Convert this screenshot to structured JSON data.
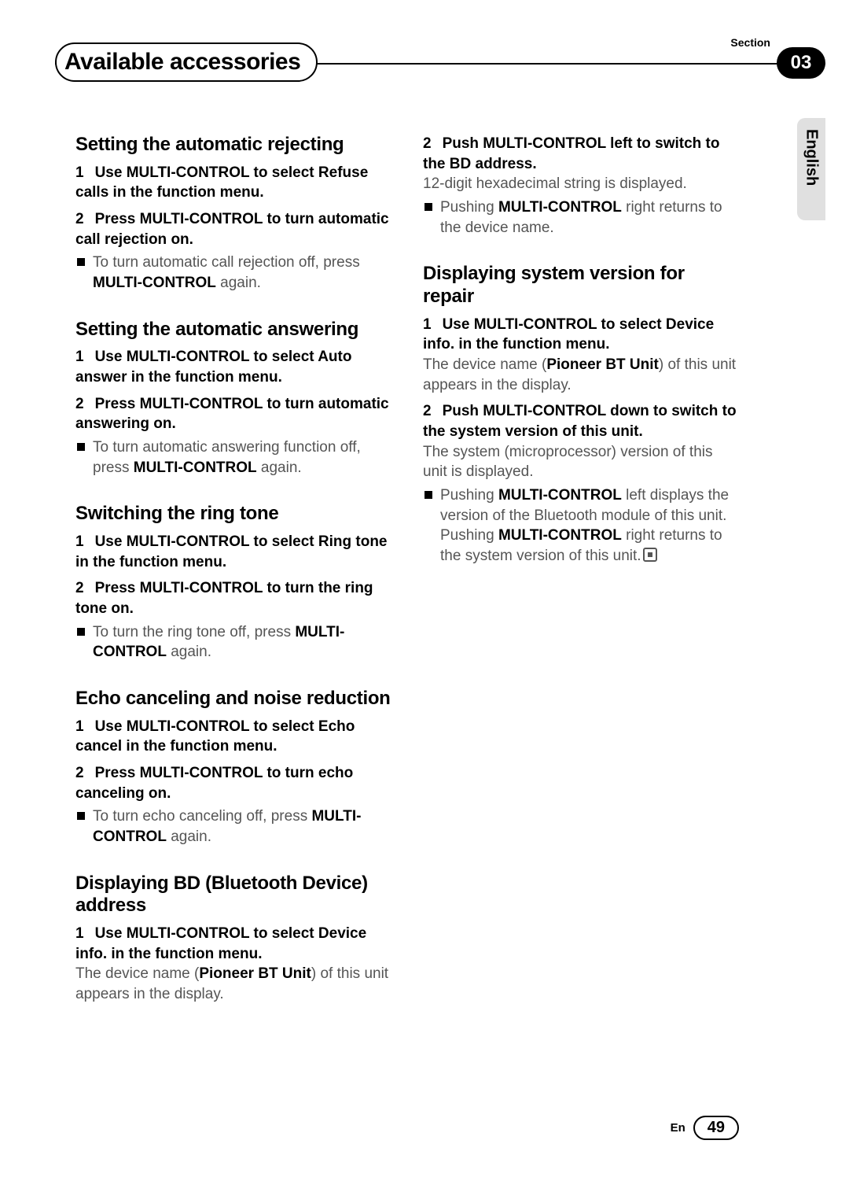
{
  "header": {
    "chapter_title": "Available accessories",
    "section_label": "Section",
    "section_number": "03",
    "language_tab": "English"
  },
  "left_column": {
    "sec1": {
      "heading": "Setting the automatic rejecting",
      "step1_num": "1",
      "step1": "Use MULTI-CONTROL to select Refuse calls in the function menu.",
      "step2_num": "2",
      "step2": "Press MULTI-CONTROL to turn automatic call rejection on.",
      "note1a": "To turn automatic call rejection off, press ",
      "note1b": "MULTI-CONTROL",
      "note1c": " again."
    },
    "sec2": {
      "heading": "Setting the automatic answering",
      "step1_num": "1",
      "step1": "Use MULTI-CONTROL to select Auto answer in the function menu.",
      "step2_num": "2",
      "step2": "Press MULTI-CONTROL to turn automatic answering on.",
      "note1a": "To turn automatic answering function off, press ",
      "note1b": "MULTI-CONTROL",
      "note1c": " again."
    },
    "sec3": {
      "heading": "Switching the ring tone",
      "step1_num": "1",
      "step1": "Use MULTI-CONTROL to select Ring tone in the function menu.",
      "step2_num": "2",
      "step2": "Press MULTI-CONTROL to turn the ring tone on.",
      "note1a": "To turn the ring tone off, press ",
      "note1b": "MULTI-CONTROL",
      "note1c": " again."
    },
    "sec4": {
      "heading": "Echo canceling and noise reduction",
      "step1_num": "1",
      "step1": "Use MULTI-CONTROL to select Echo cancel in the function menu.",
      "step2_num": "2",
      "step2": "Press MULTI-CONTROL to turn echo canceling on.",
      "note1a": "To turn echo canceling off, press ",
      "note1b": "MULTI-CONTROL",
      "note1c": " again."
    },
    "sec5": {
      "heading": "Displaying BD (Bluetooth Device) address",
      "step1_num": "1",
      "step1": "Use MULTI-CONTROL to select Device info. in the function menu.",
      "body1a": "The device name (",
      "body1b": "Pioneer BT Unit",
      "body1c": ") of this unit appears in the display."
    }
  },
  "right_column": {
    "cont": {
      "step2_num": "2",
      "step2": "Push MULTI-CONTROL left to switch to the BD address.",
      "body1": "12-digit hexadecimal string is displayed.",
      "note1a": "Pushing ",
      "note1b": "MULTI-CONTROL",
      "note1c": " right returns to the device name."
    },
    "sec6": {
      "heading": "Displaying system version for repair",
      "step1_num": "1",
      "step1": "Use MULTI-CONTROL to select Device info. in the function menu.",
      "body1a": "The device name (",
      "body1b": "Pioneer BT Unit",
      "body1c": ") of this unit appears in the display.",
      "step2_num": "2",
      "step2": "Push MULTI-CONTROL down to switch to the system version of this unit.",
      "body2": "The system (microprocessor) version of this unit is displayed.",
      "note1a": "Pushing ",
      "note1b": "MULTI-CONTROL",
      "note1c": " left displays the version of the Bluetooth module of this unit. Pushing ",
      "note1d": "MULTI-CONTROL",
      "note1e": " right returns to the system version of this unit."
    }
  },
  "footer": {
    "lang": "En",
    "page": "49"
  }
}
